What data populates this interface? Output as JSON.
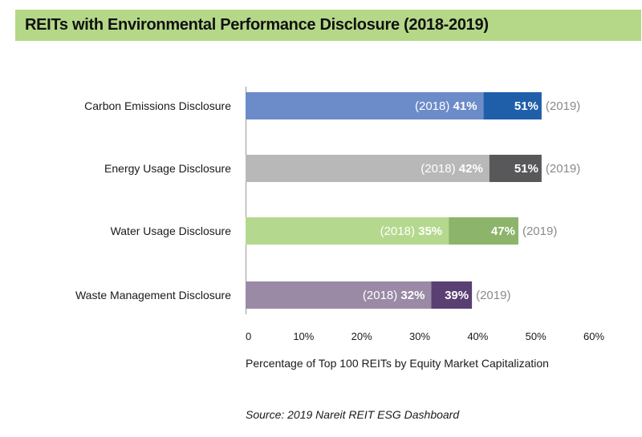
{
  "title": "REITs with Environmental Performance Disclosure (2018-2019)",
  "source": "Source: 2019 Nareit REIT ESG Dashboard",
  "chart_data": {
    "type": "bar",
    "orientation": "horizontal",
    "categories": [
      "Carbon Emissions Disclosure",
      "Energy Usage Disclosure",
      "Water Usage Disclosure",
      "Waste Management Disclosure"
    ],
    "series": [
      {
        "name": "(2018)",
        "values": [
          41,
          42,
          35,
          32
        ]
      },
      {
        "name": "(2019)",
        "values": [
          51,
          51,
          47,
          39
        ]
      }
    ],
    "value_suffix": "%",
    "xlabel": "Percentage of Top 100 REITs by Equity Market Capitalization",
    "xlim": [
      0,
      60
    ],
    "xticks": [
      "0",
      "10%",
      "20%",
      "30%",
      "40%",
      "50%",
      "60%"
    ],
    "grid": false,
    "colors": {
      "2018": [
        "#6c8bc9",
        "#b8b8b8",
        "#b4d98e",
        "#9a8aa6"
      ],
      "2019": [
        "#1f5faa",
        "#58585a",
        "#8cb46a",
        "#5a3f73"
      ]
    }
  }
}
